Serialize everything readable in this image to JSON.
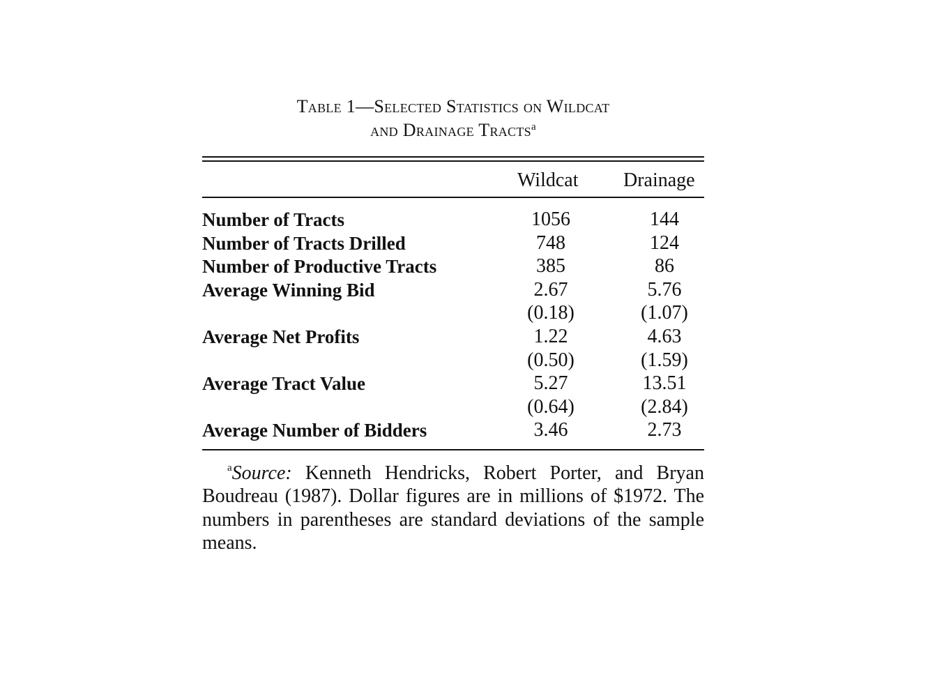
{
  "caption": {
    "line1": "Table 1—Selected Statistics on Wildcat",
    "line2": "and Drainage Tracts",
    "footnote_marker": "a"
  },
  "columns": {
    "wildcat": "Wildcat",
    "drainage": "Drainage"
  },
  "rows": [
    {
      "label": "Number of Tracts",
      "wildcat": "1056",
      "drainage": "144"
    },
    {
      "label": "Number of Tracts Drilled",
      "wildcat": "748",
      "drainage": "124"
    },
    {
      "label": "Number of Productive Tracts",
      "wildcat": "385",
      "drainage": "86"
    },
    {
      "label": "Average Winning Bid",
      "wildcat": "2.67",
      "drainage": "5.76"
    },
    {
      "label": "",
      "wildcat": "(0.18)",
      "drainage": "(1.07)"
    },
    {
      "label": "Average Net Profits",
      "wildcat": "1.22",
      "drainage": "4.63"
    },
    {
      "label": "",
      "wildcat": "(0.50)",
      "drainage": "(1.59)"
    },
    {
      "label": "Average Tract Value",
      "wildcat": "5.27",
      "drainage": "13.51"
    },
    {
      "label": "",
      "wildcat": "(0.64)",
      "drainage": "(2.84)"
    },
    {
      "label": "Average Number of Bidders",
      "wildcat": "3.46",
      "drainage": "2.73"
    }
  ],
  "footnote": {
    "marker": "a",
    "source_label": "Source:",
    "text": " Kenneth Hendricks, Robert Porter, and Bryan Boudreau (1987). Dollar figures are in millions of $1972. The numbers in parentheses are standard deviations of the sample means."
  }
}
